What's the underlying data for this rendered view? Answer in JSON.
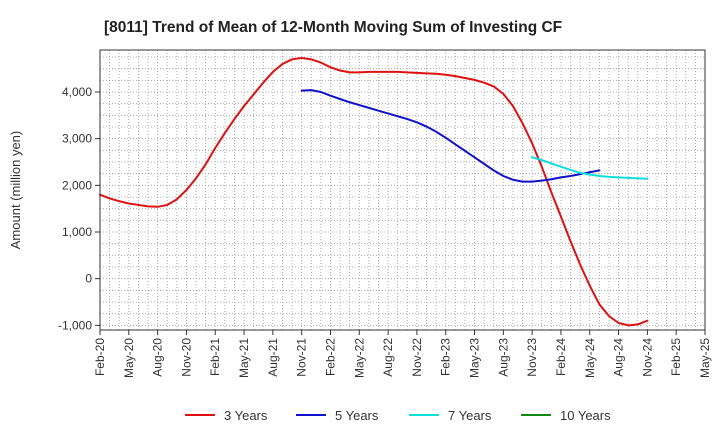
{
  "chart_data": {
    "type": "line",
    "title": "[8011]  Trend of Mean of 12-Month Moving Sum of Investing CF",
    "xlabel": "",
    "ylabel": "Amount (million yen)",
    "ylim": [
      -1100,
      4900
    ],
    "yticks": [
      -1000,
      0,
      1000,
      2000,
      3000,
      4000
    ],
    "ytick_labels": [
      "-1,000",
      "0",
      "1,000",
      "2,000",
      "3,000",
      "4,000"
    ],
    "xtick_labels": [
      "Feb-20",
      "May-20",
      "Aug-20",
      "Nov-20",
      "Feb-21",
      "May-21",
      "Aug-21",
      "Nov-21",
      "Feb-22",
      "May-22",
      "Aug-22",
      "Nov-22",
      "Feb-23",
      "May-23",
      "Aug-23",
      "Nov-23",
      "Feb-24",
      "May-24",
      "Aug-24",
      "Nov-24",
      "Feb-25",
      "May-25"
    ],
    "grid": true,
    "legend_position": "bottom",
    "series": [
      {
        "name": "3 Years",
        "color": "#dd1111",
        "start_index": 0,
        "values": [
          1800,
          1720,
          1660,
          1610,
          1580,
          1550,
          1540,
          1580,
          1700,
          1900,
          2150,
          2450,
          2800,
          3120,
          3420,
          3700,
          3950,
          4200,
          4430,
          4600,
          4700,
          4730,
          4700,
          4630,
          4530,
          4460,
          4420,
          4420,
          4430,
          4430,
          4430,
          4430,
          4420,
          4410,
          4400,
          4390,
          4370,
          4340,
          4300,
          4260,
          4200,
          4120,
          3960,
          3700,
          3330,
          2900,
          2400,
          1850,
          1330,
          800,
          300,
          -150,
          -550,
          -800,
          -950,
          -1000,
          -980,
          -900
        ]
      },
      {
        "name": "5 Years",
        "color": "#1111cc",
        "start_index": 21,
        "values": [
          4030,
          4040,
          4000,
          3920,
          3850,
          3780,
          3720,
          3660,
          3600,
          3540,
          3480,
          3420,
          3350,
          3260,
          3150,
          3020,
          2880,
          2740,
          2600,
          2460,
          2320,
          2200,
          2120,
          2080,
          2080,
          2100,
          2130,
          2170,
          2200,
          2240,
          2280,
          2320
        ]
      },
      {
        "name": "7 Years",
        "color": "#11dddd",
        "start_index": 45,
        "values": [
          2600,
          2540,
          2470,
          2400,
          2330,
          2270,
          2230,
          2200,
          2180,
          2170,
          2160,
          2150,
          2140
        ]
      },
      {
        "name": "10 Years",
        "color": "#118811",
        "start_index": 0,
        "values": []
      }
    ]
  }
}
